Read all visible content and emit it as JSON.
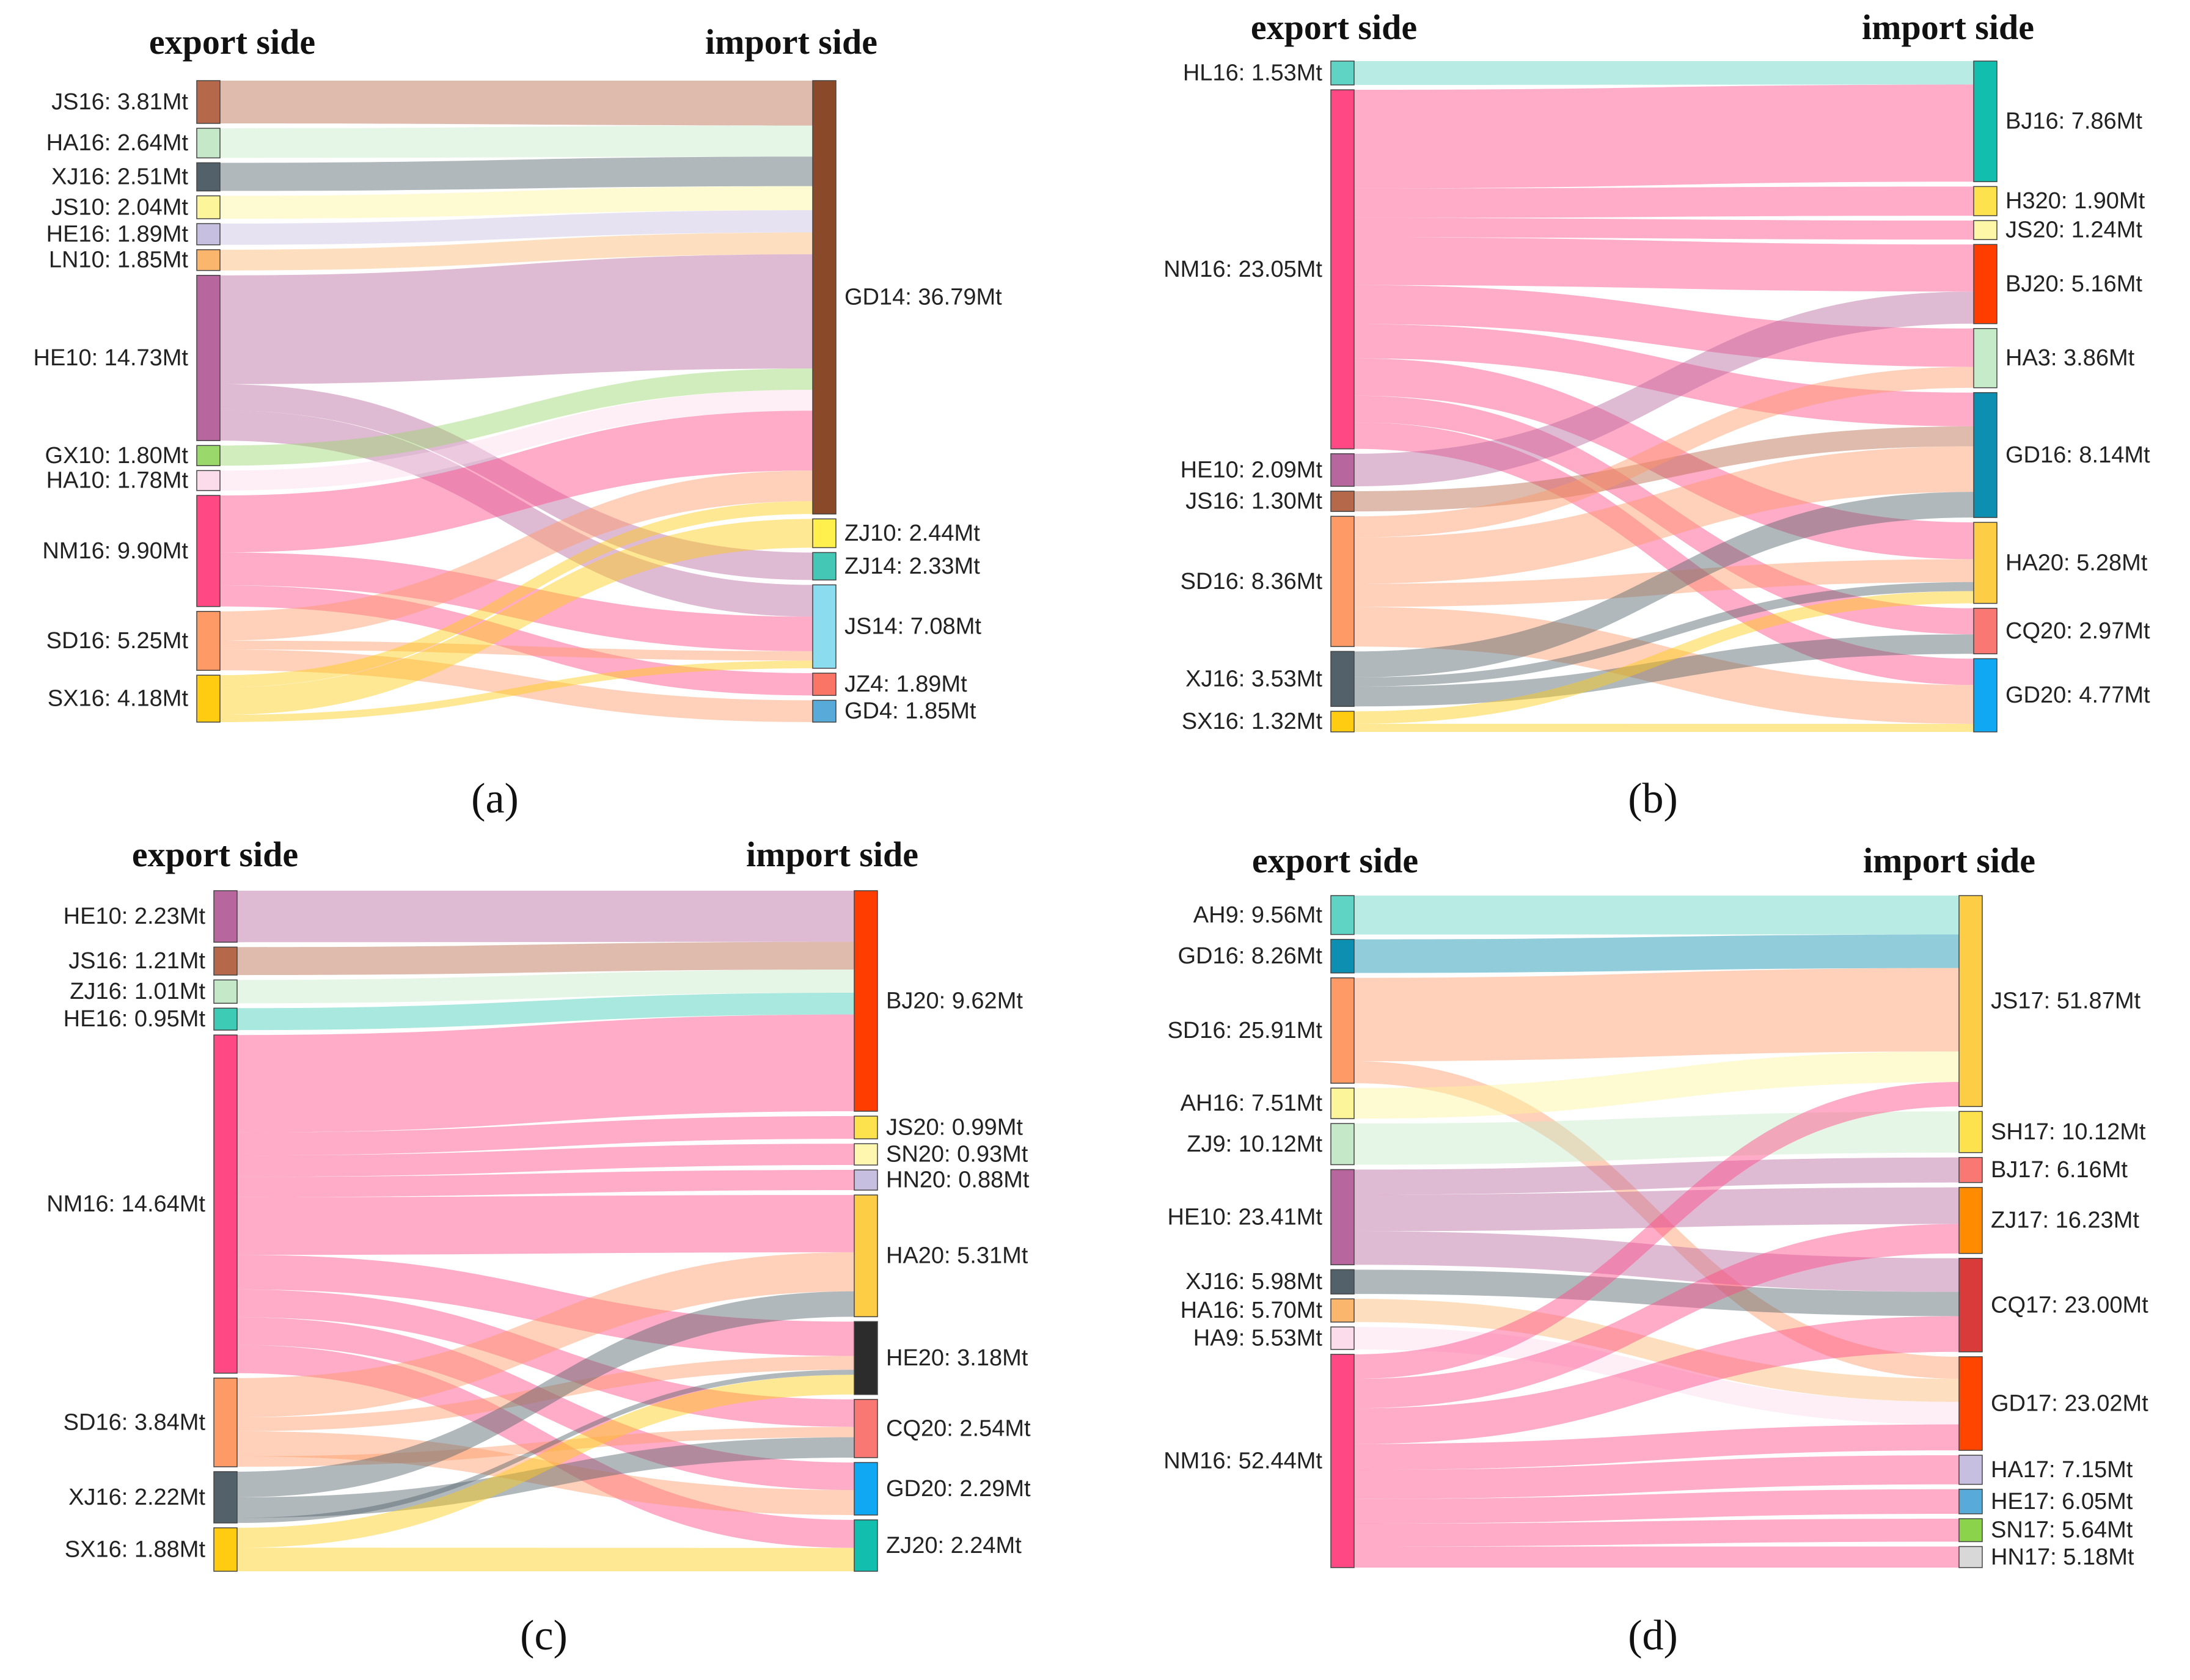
{
  "figure": {
    "export_title": "export side",
    "import_title": "import side"
  },
  "chart_data": [
    {
      "type": "sankey",
      "caption": "(a)",
      "unit": "Mt",
      "sources": [
        {
          "id": "JS16",
          "label": "JS16: 3.81Mt",
          "value": 3.81,
          "color": "#b5694a"
        },
        {
          "id": "HA16",
          "label": "HA16: 2.64Mt",
          "value": 2.64,
          "color": "#c5e8c8"
        },
        {
          "id": "XJ16",
          "label": "XJ16: 2.51Mt",
          "value": 2.51,
          "color": "#52616a"
        },
        {
          "id": "JS10",
          "label": "JS10: 2.04Mt",
          "value": 2.04,
          "color": "#fdf59a"
        },
        {
          "id": "HE16",
          "label": "HE16: 1.89Mt",
          "value": 1.89,
          "color": "#c7bfe0"
        },
        {
          "id": "LN10",
          "label": "LN10: 1.85Mt",
          "value": 1.85,
          "color": "#fbb66e"
        },
        {
          "id": "HE10",
          "label": "HE10: 14.73Mt",
          "value": 14.73,
          "color": "#b8679e"
        },
        {
          "id": "GX10",
          "label": "GX10: 1.80Mt",
          "value": 1.8,
          "color": "#9bd86c"
        },
        {
          "id": "HA10",
          "label": "HA10: 1.78Mt",
          "value": 1.78,
          "color": "#fcdcea"
        },
        {
          "id": "NM16",
          "label": "NM16: 9.90Mt",
          "value": 9.9,
          "color": "#ff4884"
        },
        {
          "id": "SD16",
          "label": "SD16: 5.25Mt",
          "value": 5.25,
          "color": "#fe9a66"
        },
        {
          "id": "SX16",
          "label": "SX16: 4.18Mt",
          "value": 4.18,
          "color": "#ffcc11"
        }
      ],
      "targets": [
        {
          "id": "GD14",
          "label": "GD14: 36.79Mt",
          "value": 36.79,
          "color": "#8a4a2a"
        },
        {
          "id": "ZJ10",
          "label": "ZJ10: 2.44Mt",
          "value": 2.44,
          "color": "#fff04e"
        },
        {
          "id": "ZJ14",
          "label": "ZJ14: 2.33Mt",
          "value": 2.33,
          "color": "#44c7b5"
        },
        {
          "id": "JS14",
          "label": "JS14: 7.08Mt",
          "value": 7.08,
          "color": "#8cdcf0"
        },
        {
          "id": "JZ4",
          "label": "JZ4: 1.89Mt",
          "value": 1.89,
          "color": "#fb7566"
        },
        {
          "id": "GD4",
          "label": "GD4: 1.85Mt",
          "value": 1.85,
          "color": "#58aad8"
        }
      ],
      "flows": [
        {
          "source": "JS16",
          "target": "GD14",
          "value": 3.81
        },
        {
          "source": "HA16",
          "target": "GD14",
          "value": 2.64
        },
        {
          "source": "XJ16",
          "target": "GD14",
          "value": 2.51
        },
        {
          "source": "JS10",
          "target": "GD14",
          "value": 2.04
        },
        {
          "source": "HE16",
          "target": "GD14",
          "value": 1.89
        },
        {
          "source": "LN10",
          "target": "GD14",
          "value": 1.85
        },
        {
          "source": "HE10",
          "target": "GD14",
          "value": 9.7
        },
        {
          "source": "HE10",
          "target": "ZJ14",
          "value": 2.33
        },
        {
          "source": "HE10",
          "target": "JS14",
          "value": 2.7
        },
        {
          "source": "GX10",
          "target": "GD14",
          "value": 1.8
        },
        {
          "source": "HA10",
          "target": "GD14",
          "value": 1.78
        },
        {
          "source": "NM16",
          "target": "GD14",
          "value": 5.08
        },
        {
          "source": "NM16",
          "target": "JS14",
          "value": 2.93
        },
        {
          "source": "NM16",
          "target": "JZ4",
          "value": 1.89
        },
        {
          "source": "SD16",
          "target": "GD14",
          "value": 2.6
        },
        {
          "source": "SD16",
          "target": "JS14",
          "value": 0.8
        },
        {
          "source": "SD16",
          "target": "GD4",
          "value": 1.85
        },
        {
          "source": "SX16",
          "target": "GD14",
          "value": 1.09
        },
        {
          "source": "SX16",
          "target": "ZJ10",
          "value": 2.44
        },
        {
          "source": "SX16",
          "target": "JS14",
          "value": 0.65
        }
      ]
    },
    {
      "type": "sankey",
      "caption": "(b)",
      "unit": "Mt",
      "sources": [
        {
          "id": "HL16",
          "label": "HL16: 1.53Mt",
          "value": 1.53,
          "color": "#5fd3c4"
        },
        {
          "id": "NM16",
          "label": "NM16: 23.05Mt",
          "value": 23.05,
          "color": "#ff4884"
        },
        {
          "id": "HE10",
          "label": "HE10: 2.09Mt",
          "value": 2.09,
          "color": "#b8679e"
        },
        {
          "id": "JS16",
          "label": "JS16: 1.30Mt",
          "value": 1.3,
          "color": "#b5694a"
        },
        {
          "id": "SD16",
          "label": "SD16: 8.36Mt",
          "value": 8.36,
          "color": "#fe9a66"
        },
        {
          "id": "XJ16",
          "label": "XJ16: 3.53Mt",
          "value": 3.53,
          "color": "#52616a"
        },
        {
          "id": "SX16",
          "label": "SX16: 1.32Mt",
          "value": 1.32,
          "color": "#ffcc11"
        }
      ],
      "targets": [
        {
          "id": "BJ16",
          "label": "BJ16: 7.86Mt",
          "value": 7.86,
          "color": "#12bfae"
        },
        {
          "id": "H320",
          "label": "H320: 1.90Mt",
          "value": 1.9,
          "color": "#fde24e"
        },
        {
          "id": "JS20",
          "label": "JS20: 1.24Mt",
          "value": 1.24,
          "color": "#fff7a8"
        },
        {
          "id": "BJ20",
          "label": "BJ20: 5.16Mt",
          "value": 5.16,
          "color": "#ff3d00"
        },
        {
          "id": "HA3",
          "label": "HA3: 3.86Mt",
          "value": 3.86,
          "color": "#c5ebc8"
        },
        {
          "id": "GD16",
          "label": "GD16: 8.14Mt",
          "value": 8.14,
          "color": "#0c8fb0"
        },
        {
          "id": "HA20",
          "label": "HA20: 5.28Mt",
          "value": 5.28,
          "color": "#fdcd45"
        },
        {
          "id": "CQ20",
          "label": "CQ20: 2.97Mt",
          "value": 2.97,
          "color": "#fa7873"
        },
        {
          "id": "GD20",
          "label": "GD20: 4.77Mt",
          "value": 4.77,
          "color": "#10a8f2"
        }
      ],
      "flows": [
        {
          "source": "HL16",
          "target": "BJ16",
          "value": 1.53
        },
        {
          "source": "NM16",
          "target": "BJ16",
          "value": 6.33
        },
        {
          "source": "NM16",
          "target": "H320",
          "value": 1.9
        },
        {
          "source": "NM16",
          "target": "JS20",
          "value": 1.24
        },
        {
          "source": "NM16",
          "target": "BJ20",
          "value": 3.07
        },
        {
          "source": "NM16",
          "target": "HA3",
          "value": 2.5
        },
        {
          "source": "NM16",
          "target": "GD16",
          "value": 2.2
        },
        {
          "source": "NM16",
          "target": "HA20",
          "value": 2.4
        },
        {
          "source": "NM16",
          "target": "CQ20",
          "value": 1.7
        },
        {
          "source": "NM16",
          "target": "GD20",
          "value": 1.71
        },
        {
          "source": "HE10",
          "target": "BJ20",
          "value": 2.09
        },
        {
          "source": "JS16",
          "target": "GD16",
          "value": 1.3
        },
        {
          "source": "SD16",
          "target": "HA3",
          "value": 1.36
        },
        {
          "source": "SD16",
          "target": "GD16",
          "value": 2.97
        },
        {
          "source": "SD16",
          "target": "HA20",
          "value": 1.49
        },
        {
          "source": "SD16",
          "target": "GD20",
          "value": 2.54
        },
        {
          "source": "XJ16",
          "target": "GD16",
          "value": 1.67
        },
        {
          "source": "XJ16",
          "target": "HA20",
          "value": 0.59
        },
        {
          "source": "XJ16",
          "target": "CQ20",
          "value": 1.27
        },
        {
          "source": "SX16",
          "target": "HA20",
          "value": 0.8
        },
        {
          "source": "SX16",
          "target": "GD20",
          "value": 0.52
        }
      ]
    },
    {
      "type": "sankey",
      "caption": "(c)",
      "unit": "Mt",
      "sources": [
        {
          "id": "HE10",
          "label": "HE10: 2.23Mt",
          "value": 2.23,
          "color": "#b8679e"
        },
        {
          "id": "JS16",
          "label": "JS16: 1.21Mt",
          "value": 1.21,
          "color": "#b5694a"
        },
        {
          "id": "ZJ16",
          "label": "ZJ16: 1.01Mt",
          "value": 1.01,
          "color": "#c5e8c8"
        },
        {
          "id": "HE16",
          "label": "HE16: 0.95Mt",
          "value": 0.95,
          "color": "#3ecbb6"
        },
        {
          "id": "NM16",
          "label": "NM16: 14.64Mt",
          "value": 14.64,
          "color": "#ff4884"
        },
        {
          "id": "SD16",
          "label": "SD16: 3.84Mt",
          "value": 3.84,
          "color": "#fe9a66"
        },
        {
          "id": "XJ16",
          "label": "XJ16: 2.22Mt",
          "value": 2.22,
          "color": "#52616a"
        },
        {
          "id": "SX16",
          "label": "SX16: 1.88Mt",
          "value": 1.88,
          "color": "#ffcc11"
        }
      ],
      "targets": [
        {
          "id": "BJ20",
          "label": "BJ20: 9.62Mt",
          "value": 9.62,
          "color": "#ff3d00"
        },
        {
          "id": "JS20",
          "label": "JS20: 0.99Mt",
          "value": 0.99,
          "color": "#fde24e"
        },
        {
          "id": "SN20",
          "label": "SN20: 0.93Mt",
          "value": 0.93,
          "color": "#fff7b0"
        },
        {
          "id": "HN20",
          "label": "HN20: 0.88Mt",
          "value": 0.88,
          "color": "#c7bfe0"
        },
        {
          "id": "HA20",
          "label": "HA20: 5.31Mt",
          "value": 5.31,
          "color": "#fdcd45"
        },
        {
          "id": "HE20",
          "label": "HE20: 3.18Mt",
          "value": 3.18,
          "color": "#2c2c2c"
        },
        {
          "id": "CQ20",
          "label": "CQ20: 2.54Mt",
          "value": 2.54,
          "color": "#fa7873"
        },
        {
          "id": "GD20",
          "label": "GD20: 2.29Mt",
          "value": 2.29,
          "color": "#10a8f2"
        },
        {
          "id": "ZJ20",
          "label": "ZJ20: 2.24Mt",
          "value": 2.24,
          "color": "#12bfae"
        }
      ],
      "flows": [
        {
          "source": "HE10",
          "target": "BJ20",
          "value": 2.23
        },
        {
          "source": "JS16",
          "target": "BJ20",
          "value": 1.21
        },
        {
          "source": "ZJ16",
          "target": "BJ20",
          "value": 1.01
        },
        {
          "source": "HE16",
          "target": "BJ20",
          "value": 0.95
        },
        {
          "source": "NM16",
          "target": "BJ20",
          "value": 4.22
        },
        {
          "source": "NM16",
          "target": "JS20",
          "value": 0.99
        },
        {
          "source": "NM16",
          "target": "SN20",
          "value": 0.93
        },
        {
          "source": "NM16",
          "target": "HN20",
          "value": 0.88
        },
        {
          "source": "NM16",
          "target": "HA20",
          "value": 2.5
        },
        {
          "source": "NM16",
          "target": "HE20",
          "value": 1.5
        },
        {
          "source": "NM16",
          "target": "CQ20",
          "value": 1.2
        },
        {
          "source": "NM16",
          "target": "GD20",
          "value": 1.2
        },
        {
          "source": "NM16",
          "target": "ZJ20",
          "value": 1.22
        },
        {
          "source": "SD16",
          "target": "BJ20",
          "value": 0.0
        },
        {
          "source": "SD16",
          "target": "HA20",
          "value": 1.7
        },
        {
          "source": "SD16",
          "target": "HE20",
          "value": 0.6
        },
        {
          "source": "SD16",
          "target": "GD20",
          "value": 1.09
        },
        {
          "source": "SD16",
          "target": "CQ20",
          "value": 0.45
        },
        {
          "source": "XJ16",
          "target": "HA20",
          "value": 1.11
        },
        {
          "source": "XJ16",
          "target": "CQ20",
          "value": 0.89
        },
        {
          "source": "XJ16",
          "target": "HE20",
          "value": 0.22
        },
        {
          "source": "SX16",
          "target": "HE20",
          "value": 0.86
        },
        {
          "source": "SX16",
          "target": "ZJ20",
          "value": 1.02
        }
      ]
    },
    {
      "type": "sankey",
      "caption": "(d)",
      "unit": "Mt",
      "sources": [
        {
          "id": "AH9",
          "label": "AH9: 9.56Mt",
          "value": 9.56,
          "color": "#5fd3c4"
        },
        {
          "id": "GD16",
          "label": "GD16: 8.26Mt",
          "value": 8.26,
          "color": "#0c8fb0"
        },
        {
          "id": "SD16",
          "label": "SD16: 25.91Mt",
          "value": 25.91,
          "color": "#fe9a66"
        },
        {
          "id": "AH16",
          "label": "AH16: 7.51Mt",
          "value": 7.51,
          "color": "#fdf59a"
        },
        {
          "id": "ZJ9",
          "label": "ZJ9: 10.12Mt",
          "value": 10.12,
          "color": "#c5e8c8"
        },
        {
          "id": "HE10",
          "label": "HE10: 23.41Mt",
          "value": 23.41,
          "color": "#b8679e"
        },
        {
          "id": "XJ16",
          "label": "XJ16: 5.98Mt",
          "value": 5.98,
          "color": "#52616a"
        },
        {
          "id": "HA16",
          "label": "HA16: 5.70Mt",
          "value": 5.7,
          "color": "#fbb66e"
        },
        {
          "id": "HA9",
          "label": "HA9: 5.53Mt",
          "value": 5.53,
          "color": "#fcdcea"
        },
        {
          "id": "NM16",
          "label": "NM16: 52.44Mt",
          "value": 52.44,
          "color": "#ff4884"
        }
      ],
      "targets": [
        {
          "id": "JS17",
          "label": "JS17: 51.87Mt",
          "value": 51.87,
          "color": "#fdcd45"
        },
        {
          "id": "SH17",
          "label": "SH17: 10.12Mt",
          "value": 10.12,
          "color": "#fde24e"
        },
        {
          "id": "BJ17",
          "label": "BJ17: 6.16Mt",
          "value": 6.16,
          "color": "#fa7873"
        },
        {
          "id": "ZJ17",
          "label": "ZJ17: 16.23Mt",
          "value": 16.23,
          "color": "#ff8c00"
        },
        {
          "id": "CQ17",
          "label": "CQ17: 23.00Mt",
          "value": 23.0,
          "color": "#d93a3a"
        },
        {
          "id": "GD17",
          "label": "GD17: 23.02Mt",
          "value": 23.02,
          "color": "#ff4500"
        },
        {
          "id": "HA17",
          "label": "HA17: 7.15Mt",
          "value": 7.15,
          "color": "#c7bfe0"
        },
        {
          "id": "HE17",
          "label": "HE17: 6.05Mt",
          "value": 6.05,
          "color": "#58aad8"
        },
        {
          "id": "SN17",
          "label": "SN17: 5.64Mt",
          "value": 5.64,
          "color": "#8bd34a"
        },
        {
          "id": "HN17",
          "label": "HN17: 5.18Mt",
          "value": 5.18,
          "color": "#d8d8d8"
        }
      ],
      "flows": [
        {
          "source": "AH9",
          "target": "JS17",
          "value": 9.56
        },
        {
          "source": "GD16",
          "target": "JS17",
          "value": 8.26
        },
        {
          "source": "SD16",
          "target": "JS17",
          "value": 20.5
        },
        {
          "source": "SD16",
          "target": "GD17",
          "value": 5.41
        },
        {
          "source": "AH16",
          "target": "JS17",
          "value": 7.51
        },
        {
          "source": "ZJ9",
          "target": "SH17",
          "value": 10.12
        },
        {
          "source": "HE10",
          "target": "BJ17",
          "value": 6.16
        },
        {
          "source": "HE10",
          "target": "ZJ17",
          "value": 9.0
        },
        {
          "source": "HE10",
          "target": "CQ17",
          "value": 8.25
        },
        {
          "source": "XJ16",
          "target": "CQ17",
          "value": 5.98
        },
        {
          "source": "HA16",
          "target": "GD17",
          "value": 5.7
        },
        {
          "source": "HA9",
          "target": "GD17",
          "value": 5.53
        },
        {
          "source": "NM16",
          "target": "JS17",
          "value": 6.04
        },
        {
          "source": "NM16",
          "target": "ZJ17",
          "value": 7.23
        },
        {
          "source": "NM16",
          "target": "CQ17",
          "value": 8.77
        },
        {
          "source": "NM16",
          "target": "GD17",
          "value": 6.38
        },
        {
          "source": "NM16",
          "target": "HA17",
          "value": 7.15
        },
        {
          "source": "NM16",
          "target": "HE17",
          "value": 6.05
        },
        {
          "source": "NM16",
          "target": "SN17",
          "value": 5.64
        },
        {
          "source": "NM16",
          "target": "HN17",
          "value": 5.18
        }
      ]
    }
  ]
}
